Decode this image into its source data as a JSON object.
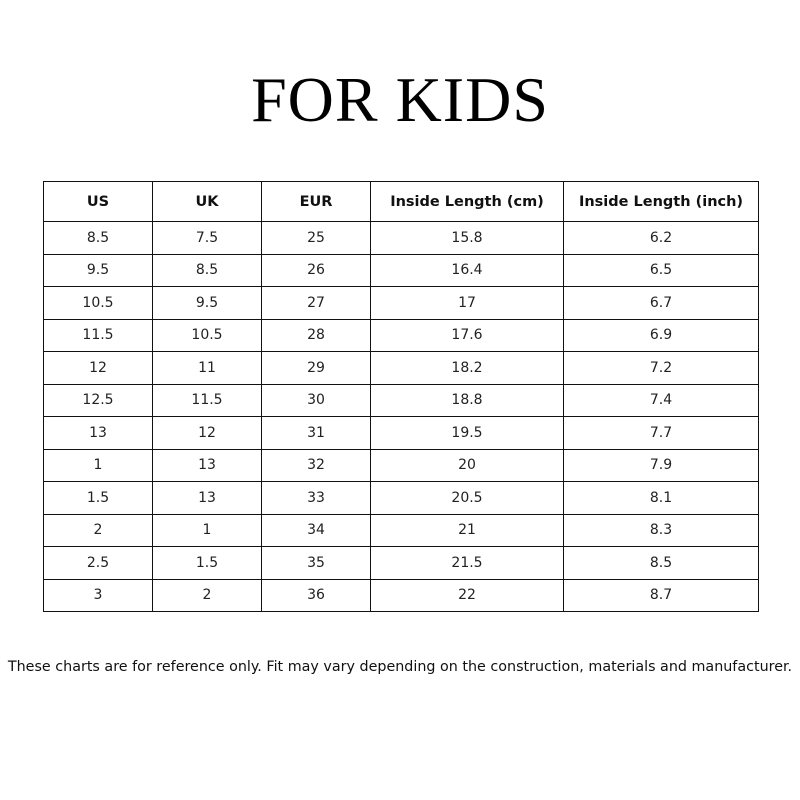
{
  "title": "FOR KIDS",
  "table": {
    "headers": [
      "US",
      "UK",
      "EUR",
      "Inside Length (cm)",
      "Inside Length (inch)"
    ],
    "rows": [
      [
        "8.5",
        "7.5",
        "25",
        "15.8",
        "6.2"
      ],
      [
        "9.5",
        "8.5",
        "26",
        "16.4",
        "6.5"
      ],
      [
        "10.5",
        "9.5",
        "27",
        "17",
        "6.7"
      ],
      [
        "11.5",
        "10.5",
        "28",
        "17.6",
        "6.9"
      ],
      [
        "12",
        "11",
        "29",
        "18.2",
        "7.2"
      ],
      [
        "12.5",
        "11.5",
        "30",
        "18.8",
        "7.4"
      ],
      [
        "13",
        "12",
        "31",
        "19.5",
        "7.7"
      ],
      [
        "1",
        "13",
        "32",
        "20",
        "7.9"
      ],
      [
        "1.5",
        "13",
        "33",
        "20.5",
        "8.1"
      ],
      [
        "2",
        "1",
        "34",
        "21",
        "8.3"
      ],
      [
        "2.5",
        "1.5",
        "35",
        "21.5",
        "8.5"
      ],
      [
        "3",
        "2",
        "36",
        "22",
        "8.7"
      ]
    ]
  },
  "note": "These charts are for reference only. Fit may vary depending on the construction, materials and manufacturer."
}
